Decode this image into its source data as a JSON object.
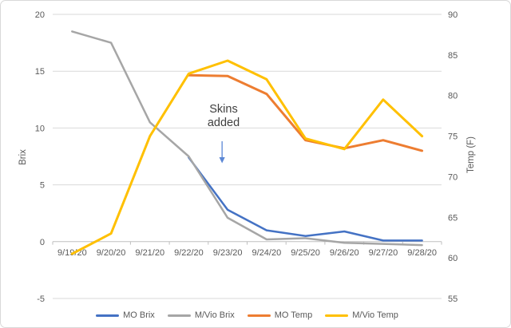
{
  "chart_data": {
    "type": "line",
    "title": "",
    "categories": [
      "9/19/20",
      "9/20/20",
      "9/21/20",
      "9/22/20",
      "9/23/20",
      "9/24/20",
      "9/25/20",
      "9/26/20",
      "9/27/20",
      "9/28/20"
    ],
    "series": [
      {
        "name": "MO Brix",
        "color": "#4472C4",
        "axis": "left",
        "width": 2.5,
        "values": [
          null,
          null,
          null,
          7.4,
          2.8,
          1.0,
          0.5,
          0.9,
          0.1,
          0.1
        ]
      },
      {
        "name": "M/Vio Brix",
        "color": "#A6A6A6",
        "axis": "left",
        "width": 2.5,
        "values": [
          18.5,
          17.5,
          10.5,
          7.5,
          2.1,
          0.2,
          0.3,
          -0.1,
          -0.2,
          -0.3
        ]
      },
      {
        "name": "MO Temp",
        "color": "#ED7D31",
        "axis": "right",
        "width": 3,
        "values": [
          null,
          null,
          null,
          82.5,
          82.4,
          80.2,
          74.5,
          73.5,
          74.5,
          73.2
        ]
      },
      {
        "name": "M/Vio Temp",
        "color": "#FFC000",
        "axis": "right",
        "width": 3,
        "values": [
          60.5,
          63,
          75,
          82.7,
          84.3,
          82,
          74.7,
          73.4,
          79.5,
          75
        ]
      }
    ],
    "left_axis": {
      "label": "Brix",
      "min": -5,
      "max": 20,
      "ticks": [
        20,
        15,
        10,
        5,
        0,
        -5
      ]
    },
    "right_axis": {
      "label": "Temp (F)",
      "min": 55,
      "max": 90,
      "ticks": [
        90,
        85,
        80,
        75,
        70,
        65,
        60,
        55
      ]
    },
    "annotation": {
      "text": "Skins added",
      "target_category": "9/23/20"
    },
    "legend_position": "bottom",
    "grid": true,
    "colors": {
      "gridline": "#d9d9d9",
      "axis_line": "#bfbfbf",
      "tick_label": "#595959",
      "annotation_text": "#3f3f3f",
      "annotation_arrow": "#5b87d5",
      "background": "#ffffff",
      "border": "#d9d9d9"
    }
  }
}
